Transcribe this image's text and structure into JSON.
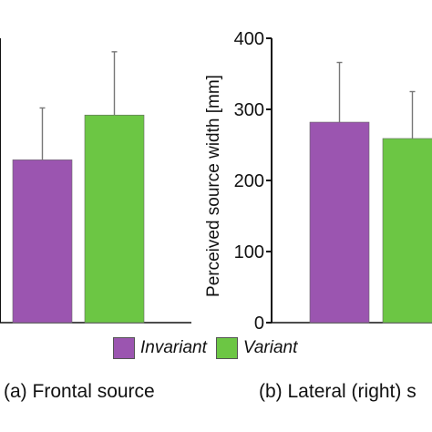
{
  "colors": {
    "invariant": "#9b55b0",
    "variant": "#6cc644",
    "axis": "#111111",
    "error": "#777777"
  },
  "legend": {
    "invariant": "Invariant",
    "variant": "Variant"
  },
  "captions": {
    "a": "(a) Frontal source",
    "b": "(b) Lateral (right) s"
  },
  "chart_data": [
    {
      "panel": "a",
      "type": "bar",
      "categories": [
        "Invariant",
        "Variant"
      ],
      "values": [
        229,
        292
      ],
      "errors": [
        73,
        89
      ],
      "ylim": [
        0,
        400
      ],
      "ylabel": "",
      "ticks": []
    },
    {
      "panel": "b",
      "type": "bar",
      "categories": [
        "Invariant",
        "Variant"
      ],
      "values": [
        282,
        259
      ],
      "errors": [
        84,
        66
      ],
      "ylim": [
        0,
        400
      ],
      "ylabel": "Perceived source width [mm]",
      "ticks": [
        0,
        100,
        200,
        300,
        400
      ]
    }
  ]
}
